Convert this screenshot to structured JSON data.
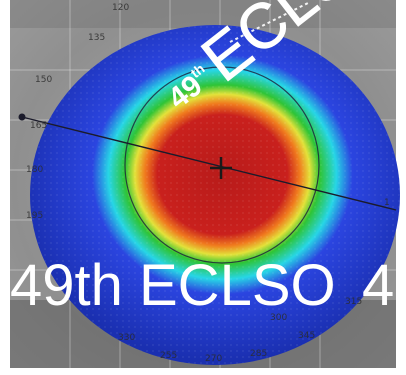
{
  "image": {
    "description": "Corneal topography heat map over an eye photo with ECLSO event text overlay"
  },
  "overlay": {
    "angled_number": "49",
    "angled_suffix": "th",
    "angled_word": "ECLSO",
    "banner": "49th ECLSO",
    "banner_tail": "4"
  },
  "scale_labels": {
    "top": "120",
    "l1": "135",
    "l2": "150",
    "l3": "165",
    "l4": "180",
    "l5": "195",
    "b1": "330",
    "b2": "255",
    "b3": "270",
    "b4": "285",
    "r1": "345",
    "r2": "300",
    "r3": "315",
    "right_edge": "1"
  },
  "colors": {
    "background": "#8a8a8a",
    "blue_dark": "#1a2fb0",
    "blue": "#2b45e0",
    "cyan": "#27d6e6",
    "green": "#2fc436",
    "yellow": "#e3e23a",
    "orange": "#f07a1e",
    "red": "#c9201d",
    "overlay_text": "#ffffff"
  }
}
